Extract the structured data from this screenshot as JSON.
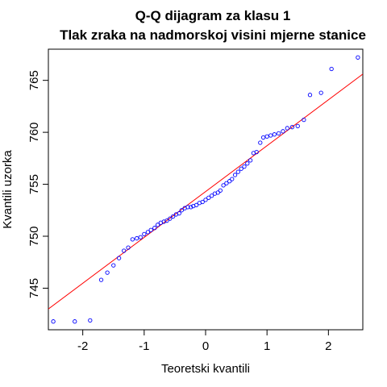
{
  "chart_data": {
    "type": "scatter",
    "title": "Q-Q dijagram za klasu 1",
    "subtitle": "Tlak zraka na nadmorskoj visini mjerne stanice",
    "xlabel": "Teoretski kvantili",
    "ylabel": "Kvantili uzorka",
    "xlim": [
      -2.56,
      2.56
    ],
    "ylim": [
      741.0,
      768.0
    ],
    "x_ticks": [
      -2,
      -1,
      0,
      1,
      2
    ],
    "y_ticks": [
      745,
      750,
      755,
      760,
      765
    ],
    "grid": false,
    "legend": "none",
    "point_color": "#0000ff",
    "line_color": "#ff0000",
    "reference_line": {
      "x1": -2.56,
      "y1": 743.0,
      "x2": 2.56,
      "y2": 765.6
    },
    "points": [
      {
        "x": -2.48,
        "y": 741.8
      },
      {
        "x": -2.13,
        "y": 741.8
      },
      {
        "x": -1.88,
        "y": 741.9
      },
      {
        "x": -1.7,
        "y": 745.8
      },
      {
        "x": -1.6,
        "y": 746.5
      },
      {
        "x": -1.5,
        "y": 747.2
      },
      {
        "x": -1.41,
        "y": 747.9
      },
      {
        "x": -1.33,
        "y": 748.6
      },
      {
        "x": -1.26,
        "y": 748.9
      },
      {
        "x": -1.19,
        "y": 749.7
      },
      {
        "x": -1.12,
        "y": 749.8
      },
      {
        "x": -1.06,
        "y": 749.9
      },
      {
        "x": -1.0,
        "y": 750.2
      },
      {
        "x": -0.94,
        "y": 750.4
      },
      {
        "x": -0.89,
        "y": 750.6
      },
      {
        "x": -0.83,
        "y": 750.8
      },
      {
        "x": -0.78,
        "y": 751.1
      },
      {
        "x": -0.73,
        "y": 751.3
      },
      {
        "x": -0.68,
        "y": 751.4
      },
      {
        "x": -0.63,
        "y": 751.5
      },
      {
        "x": -0.58,
        "y": 751.7
      },
      {
        "x": -0.53,
        "y": 751.9
      },
      {
        "x": -0.48,
        "y": 752.1
      },
      {
        "x": -0.43,
        "y": 752.2
      },
      {
        "x": -0.39,
        "y": 752.5
      },
      {
        "x": -0.34,
        "y": 752.7
      },
      {
        "x": -0.29,
        "y": 752.8
      },
      {
        "x": -0.24,
        "y": 752.8
      },
      {
        "x": -0.2,
        "y": 752.9
      },
      {
        "x": -0.15,
        "y": 753.0
      },
      {
        "x": -0.1,
        "y": 753.2
      },
      {
        "x": -0.05,
        "y": 753.3
      },
      {
        "x": 0.0,
        "y": 753.5
      },
      {
        "x": 0.05,
        "y": 753.7
      },
      {
        "x": 0.1,
        "y": 753.9
      },
      {
        "x": 0.15,
        "y": 754.1
      },
      {
        "x": 0.2,
        "y": 754.2
      },
      {
        "x": 0.24,
        "y": 754.4
      },
      {
        "x": 0.29,
        "y": 754.9
      },
      {
        "x": 0.34,
        "y": 755.1
      },
      {
        "x": 0.39,
        "y": 755.3
      },
      {
        "x": 0.43,
        "y": 755.5
      },
      {
        "x": 0.48,
        "y": 755.9
      },
      {
        "x": 0.53,
        "y": 756.2
      },
      {
        "x": 0.58,
        "y": 756.5
      },
      {
        "x": 0.63,
        "y": 756.7
      },
      {
        "x": 0.68,
        "y": 757.0
      },
      {
        "x": 0.73,
        "y": 757.3
      },
      {
        "x": 0.78,
        "y": 758.0
      },
      {
        "x": 0.83,
        "y": 758.1
      },
      {
        "x": 0.89,
        "y": 759.0
      },
      {
        "x": 0.94,
        "y": 759.5
      },
      {
        "x": 1.0,
        "y": 759.6
      },
      {
        "x": 1.06,
        "y": 759.7
      },
      {
        "x": 1.12,
        "y": 759.8
      },
      {
        "x": 1.19,
        "y": 759.9
      },
      {
        "x": 1.26,
        "y": 760.1
      },
      {
        "x": 1.33,
        "y": 760.4
      },
      {
        "x": 1.41,
        "y": 760.5
      },
      {
        "x": 1.5,
        "y": 760.6
      },
      {
        "x": 1.6,
        "y": 761.2
      },
      {
        "x": 1.7,
        "y": 763.6
      },
      {
        "x": 1.88,
        "y": 763.8
      },
      {
        "x": 2.05,
        "y": 766.1
      },
      {
        "x": 2.48,
        "y": 767.2
      }
    ]
  }
}
